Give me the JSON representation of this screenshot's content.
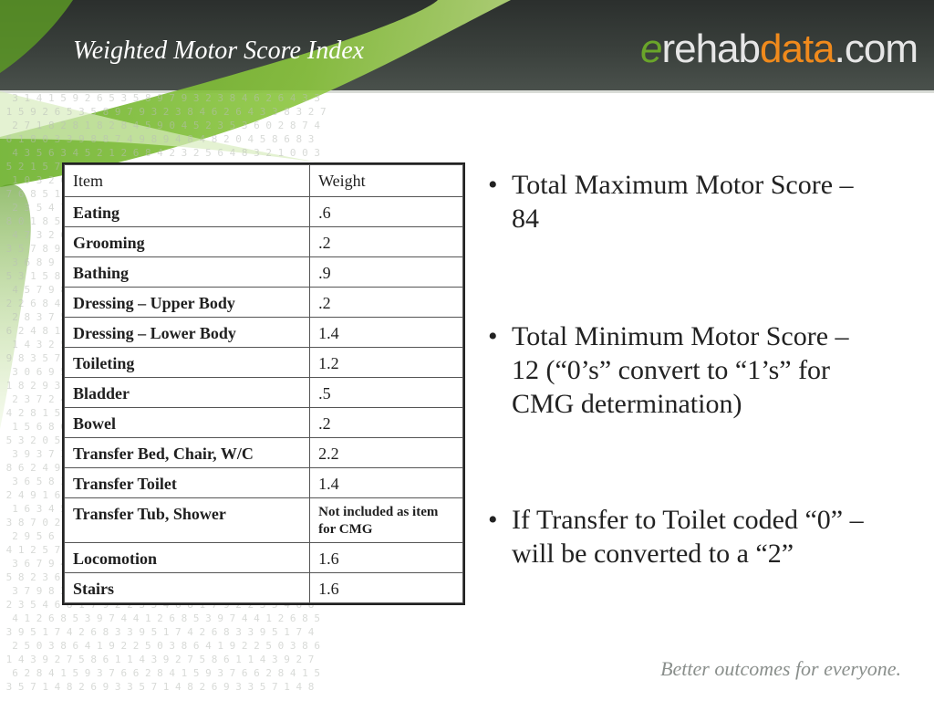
{
  "slide": {
    "title": "Weighted Motor Score Index",
    "logo": {
      "prefix": "e",
      "part1": "rehab",
      "part2": "data",
      "suffix": ".com"
    },
    "table": {
      "headers": [
        "Item",
        "Weight"
      ],
      "rows": [
        {
          "item": "Eating",
          "weight": ".6"
        },
        {
          "item": "Grooming",
          "weight": ".2"
        },
        {
          "item": "Bathing",
          "weight": ".9"
        },
        {
          "item": "Dressing – Upper Body",
          "weight": ".2"
        },
        {
          "item": "Dressing – Lower Body",
          "weight": "1.4"
        },
        {
          "item": "Toileting",
          "weight": "1.2"
        },
        {
          "item": "Bladder",
          "weight": ".5"
        },
        {
          "item": "Bowel",
          "weight": ".2"
        },
        {
          "item": "Transfer Bed, Chair, W/C",
          "weight": "2.2"
        },
        {
          "item": "Transfer Toilet",
          "weight": "1.4"
        },
        {
          "item": "Transfer Tub, Shower",
          "weight": "Not included as item for CMG"
        },
        {
          "item": "Locomotion",
          "weight": "1.6"
        },
        {
          "item": "Stairs",
          "weight": "1.6"
        }
      ]
    },
    "bullets": [
      "Total Maximum Motor Score – 84",
      "Total Minimum Motor Score – 12 (“0’s” convert to “1’s” for CMG determination)",
      "If Transfer to Toilet coded “0” – will be converted to a “2”"
    ],
    "tagline": "Better outcomes for everyone."
  },
  "colors": {
    "header": "#2b2f2d",
    "green": "#6aa52a",
    "orange": "#f08a1c",
    "text": "#222222",
    "tagline": "#8a8f8c"
  }
}
